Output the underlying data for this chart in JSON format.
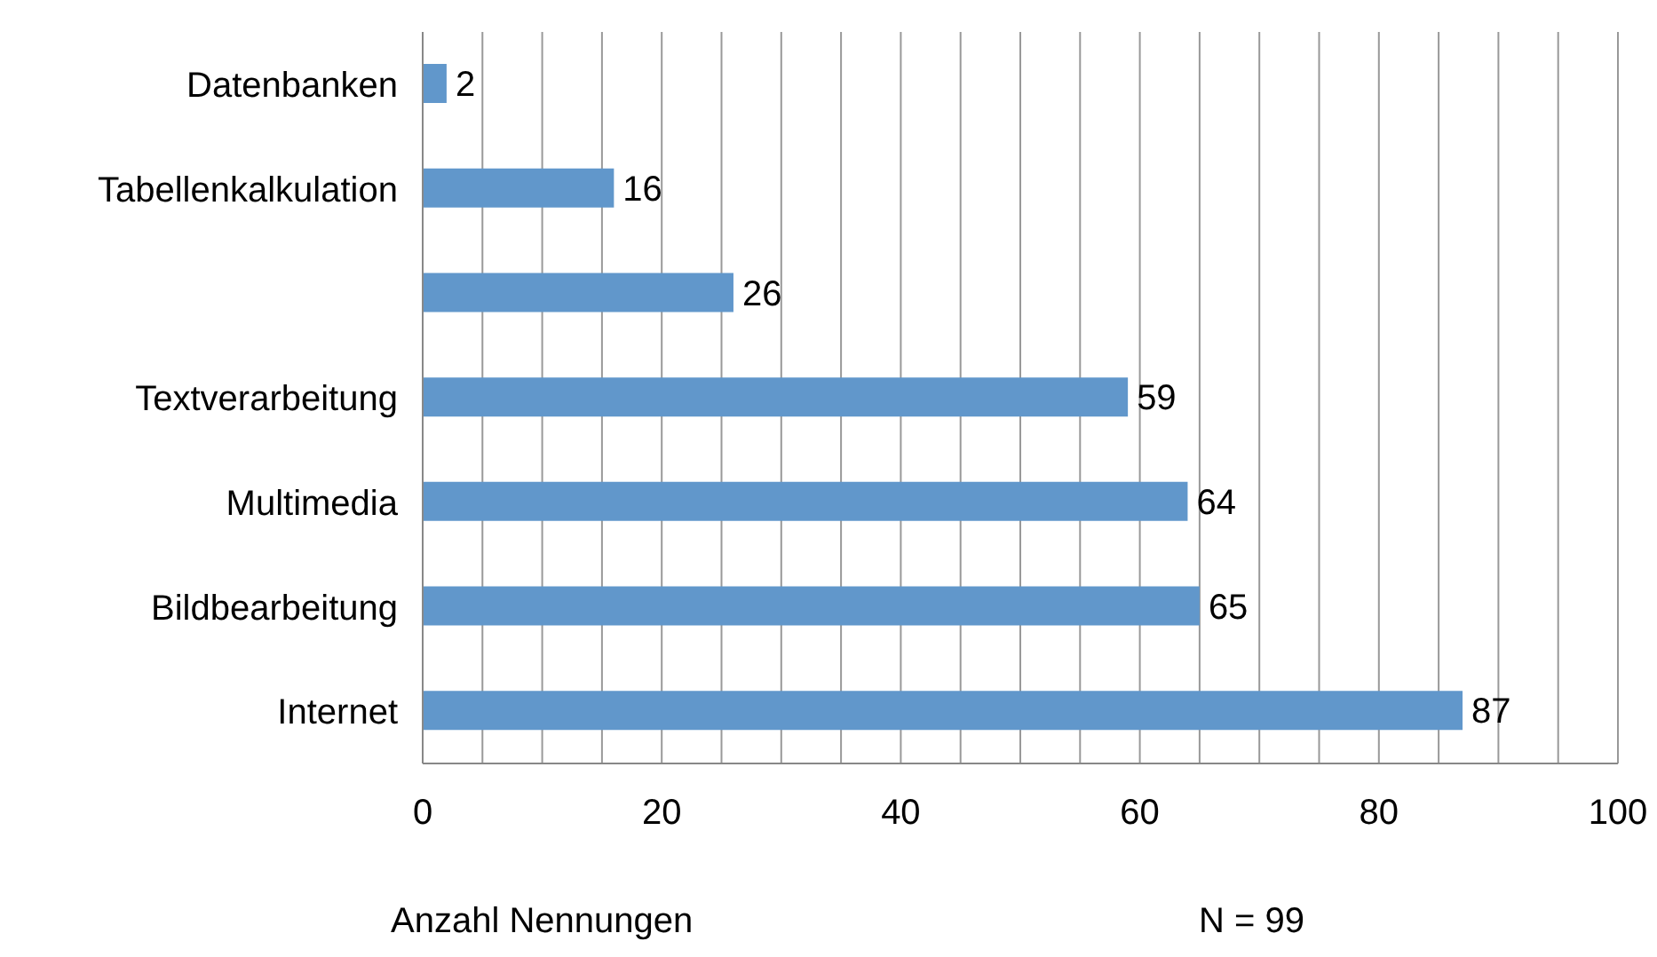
{
  "chart_data": {
    "type": "bar",
    "orientation": "horizontal",
    "categories": [
      "Datenbanken",
      "Tabellenkalkulation",
      null,
      "Textverarbeitung",
      "Multimedia",
      "Bildbearbeitung",
      "Internet"
    ],
    "values": [
      2,
      16,
      26,
      59,
      64,
      65,
      87
    ],
    "color": "#6197cb",
    "xlabel": "Anzahl Nennungen",
    "annotations": [
      "N = 99"
    ],
    "xlim": [
      0,
      100
    ],
    "xticks": [
      0,
      {
        "value": 5,
        "label": null
      },
      {
        "value": 10,
        "label": null
      },
      {
        "value": 15,
        "label": null
      },
      20,
      {
        "value": 25,
        "label": null
      },
      {
        "value": 30,
        "label": null
      },
      {
        "value": 35,
        "label": null
      },
      40,
      {
        "value": 45,
        "label": null
      },
      {
        "value": 50,
        "label": null
      },
      {
        "value": 55,
        "label": null
      },
      60,
      {
        "value": 65,
        "label": null
      },
      {
        "value": 70,
        "label": null
      },
      {
        "value": 75,
        "label": null
      },
      80,
      {
        "value": 85,
        "label": null
      },
      {
        "value": 90,
        "label": null
      },
      {
        "value": 95,
        "label": null
      },
      100
    ],
    "grid": "x",
    "data_labels": true,
    "legend": false
  }
}
